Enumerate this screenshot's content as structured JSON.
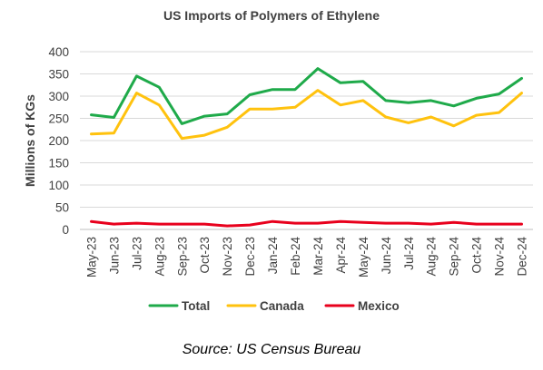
{
  "chart_data": {
    "type": "line",
    "title": "US Imports of Polymers of Ethylene",
    "xlabel": "",
    "ylabel": "Millions of KGs",
    "ylim": [
      0,
      400
    ],
    "yticks": [
      "0",
      "50",
      "100",
      "150",
      "200",
      "250",
      "300",
      "350",
      "400"
    ],
    "grid": "horizontal",
    "legend_position": "bottom",
    "categories": [
      "May-23",
      "Jun-23",
      "Jul-23",
      "Aug-23",
      "Sep-23",
      "Oct-23",
      "Nov-23",
      "Dec-23",
      "Jan-24",
      "Feb-24",
      "Mar-24",
      "Apr-24",
      "May-24",
      "Jun-24",
      "Jul-24",
      "Aug-24",
      "Sep-24",
      "Oct-24",
      "Nov-24",
      "Dec-24"
    ],
    "series": [
      {
        "name": "Total",
        "color": "#1faa4a",
        "values": [
          258,
          252,
          345,
          320,
          238,
          255,
          260,
          303,
          315,
          315,
          362,
          330,
          333,
          290,
          285,
          290,
          278,
          295,
          305,
          340
        ]
      },
      {
        "name": "Canada",
        "color": "#ffc20e",
        "values": [
          215,
          217,
          307,
          280,
          205,
          212,
          230,
          271,
          271,
          275,
          313,
          280,
          290,
          253,
          240,
          253,
          233,
          257,
          263,
          307
        ]
      },
      {
        "name": "Mexico",
        "color": "#e8001c",
        "values": [
          18,
          12,
          14,
          12,
          12,
          12,
          8,
          10,
          18,
          14,
          14,
          18,
          16,
          14,
          14,
          12,
          16,
          12,
          12,
          12
        ]
      }
    ]
  },
  "source": "Source: US Census Bureau"
}
